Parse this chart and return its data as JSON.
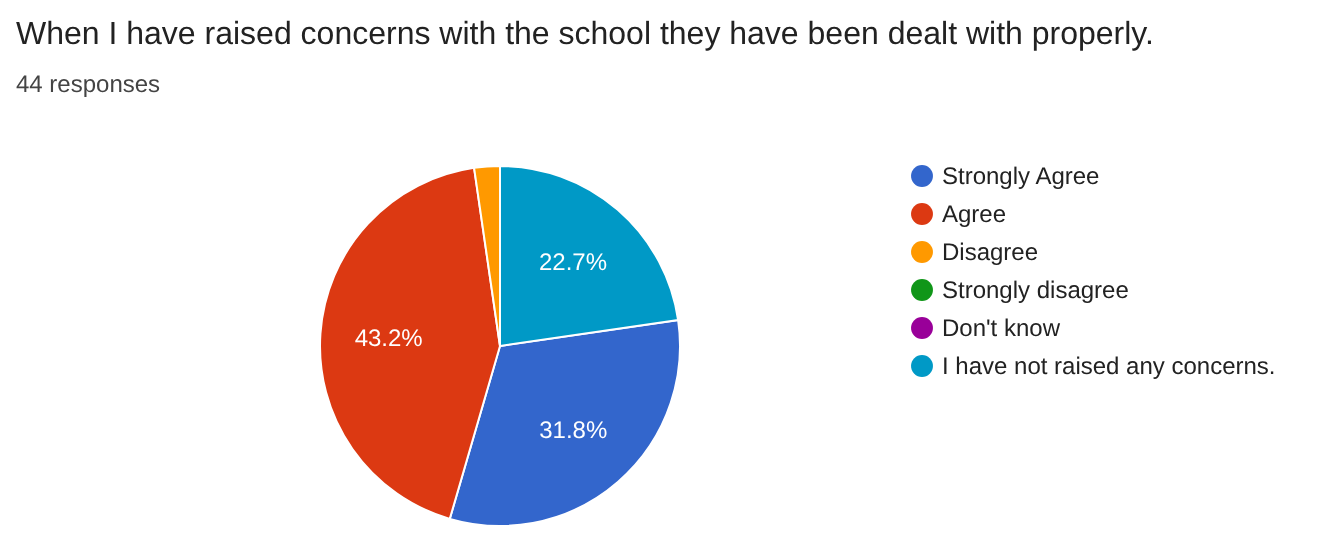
{
  "chart_data": {
    "type": "pie",
    "title": "When I have raised concerns with the school they have been dealt with properly.",
    "subtitle": "44 responses",
    "categories": [
      "Strongly Agree",
      "Agree",
      "Disagree",
      "Strongly disagree",
      "Don't know",
      "I have not raised any concerns."
    ],
    "values": [
      31.8,
      43.2,
      2.3,
      0,
      0,
      22.7
    ],
    "colors": [
      "#3366cc",
      "#dc3912",
      "#ff9900",
      "#109618",
      "#990099",
      "#0099c6"
    ],
    "value_labels": [
      "31.8%",
      "43.2%",
      null,
      null,
      null,
      "22.7%"
    ],
    "legend": "right"
  }
}
